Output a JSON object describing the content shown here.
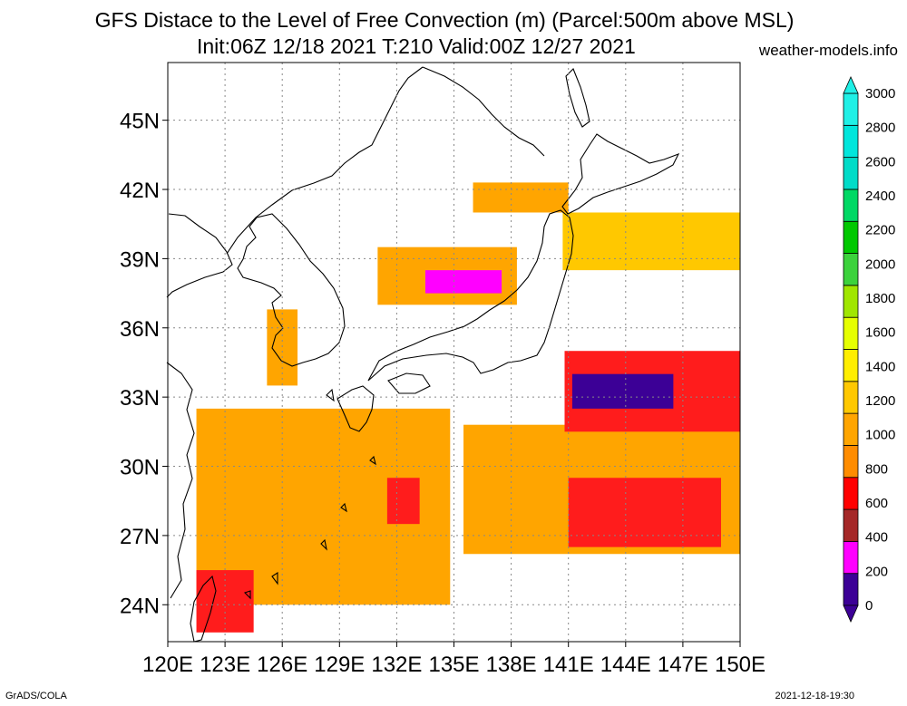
{
  "title_line1": "GFS Distace to the Level of Free Convection (m) (Parcel:500m above MSL)",
  "title_line2": "Init:06Z 12/18 2021 T:210 Valid:00Z 12/27 2021",
  "credit": "weather-models.info",
  "footer_left": "GrADS/COLA",
  "footer_right": "2021-12-18-19:30",
  "map": {
    "lon_range": [
      120,
      150
    ],
    "lat_range": [
      22.4,
      47.5
    ],
    "x_ticks": [
      "120E",
      "123E",
      "126E",
      "129E",
      "132E",
      "135E",
      "138E",
      "141E",
      "144E",
      "147E",
      "150E"
    ],
    "y_ticks": [
      "24N",
      "27N",
      "30N",
      "33N",
      "36N",
      "39N",
      "42N",
      "45N"
    ],
    "y_tick_values": [
      24,
      27,
      30,
      33,
      36,
      39,
      42,
      45
    ],
    "gridlines": "dotted",
    "colorbar_ticks": [
      "0",
      "200",
      "400",
      "600",
      "800",
      "1000",
      "1200",
      "1400",
      "1600",
      "1800",
      "2000",
      "2200",
      "2400",
      "2600",
      "2800",
      "3000"
    ],
    "colorbar_colors": [
      "#3c0096",
      "#ff00ff",
      "#a52828",
      "#ff0000",
      "#ff8c00",
      "#ffa500",
      "#ffc800",
      "#ffee00",
      "#e6ff00",
      "#a0e600",
      "#3cd23c",
      "#00c800",
      "#00d864",
      "#00dcc8",
      "#00e6dc",
      "#20f0e6"
    ],
    "field_areas": [
      {
        "name": "east-china-sea-south",
        "color": "#ffa500",
        "lon": [
          121.5,
          134.8
        ],
        "lat": [
          24.0,
          32.5
        ]
      },
      {
        "name": "taiwan-strait-band",
        "color": "#ff1c1c",
        "lon": [
          121.5,
          124.5
        ],
        "lat": [
          22.8,
          25.5
        ]
      },
      {
        "name": "ryukyu-red-streak",
        "color": "#ff1c1c",
        "lon": [
          131.5,
          133.2
        ],
        "lat": [
          27.5,
          29.5
        ]
      },
      {
        "name": "pacific-south-band",
        "color": "#ffa500",
        "lon": [
          135.5,
          150.0
        ],
        "lat": [
          26.2,
          31.8
        ]
      },
      {
        "name": "pacific-red-streak",
        "color": "#ff1c1c",
        "lon": [
          141.0,
          149.0
        ],
        "lat": [
          26.5,
          29.5
        ]
      },
      {
        "name": "pacific-east-cell",
        "color": "#ff1c1c",
        "lon": [
          140.8,
          150.0
        ],
        "lat": [
          31.5,
          35.0
        ]
      },
      {
        "name": "pacific-east-core",
        "color": "#3c0096",
        "lon": [
          141.2,
          146.5
        ],
        "lat": [
          32.5,
          34.0
        ]
      },
      {
        "name": "sea-of-japan-band",
        "color": "#ffa500",
        "lon": [
          131.0,
          138.3
        ],
        "lat": [
          37.0,
          39.5
        ]
      },
      {
        "name": "sea-of-japan-core",
        "color": "#ff00ff",
        "lon": [
          133.5,
          137.5
        ],
        "lat": [
          37.5,
          38.5
        ]
      },
      {
        "name": "hokkaido-south",
        "color": "#ffa500",
        "lon": [
          136.0,
          141.0
        ],
        "lat": [
          41.0,
          42.3
        ]
      },
      {
        "name": "east-of-tohoku",
        "color": "#ffc800",
        "lon": [
          140.7,
          150.0
        ],
        "lat": [
          38.5,
          41.0
        ]
      },
      {
        "name": "korea-strait",
        "color": "#ffa500",
        "lon": [
          125.2,
          126.8
        ],
        "lat": [
          33.5,
          36.8
        ]
      }
    ]
  }
}
